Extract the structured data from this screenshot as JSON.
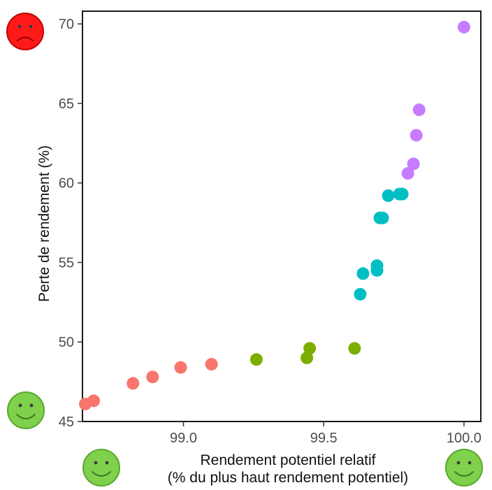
{
  "chart_data": {
    "type": "scatter",
    "xlabel_line1": "Rendement potentiel relatif",
    "xlabel_line2": "(% du plus haut rendement potentiel)",
    "ylabel": "Perte de rendement (%)",
    "xlim": [
      98.64,
      100.06
    ],
    "ylim": [
      45,
      70.8
    ],
    "x_ticks": [
      {
        "value": 99.0,
        "label": "99.0"
      },
      {
        "value": 99.5,
        "label": "99.5"
      },
      {
        "value": 100.0,
        "label": "100.0"
      }
    ],
    "y_ticks": [
      {
        "value": 45,
        "label": "45"
      },
      {
        "value": 50,
        "label": "50"
      },
      {
        "value": 55,
        "label": "55"
      },
      {
        "value": 60,
        "label": "60"
      },
      {
        "value": 65,
        "label": "65"
      },
      {
        "value": 70,
        "label": "70"
      }
    ],
    "grid": false,
    "legend": "none",
    "series": [
      {
        "color": "#f8766d",
        "points": [
          {
            "x": 98.65,
            "y": 46.1
          },
          {
            "x": 98.68,
            "y": 46.3
          },
          {
            "x": 98.82,
            "y": 47.4
          },
          {
            "x": 98.89,
            "y": 47.8
          },
          {
            "x": 98.99,
            "y": 48.4
          },
          {
            "x": 99.1,
            "y": 48.6
          }
        ]
      },
      {
        "color": "#7cae00",
        "points": [
          {
            "x": 99.26,
            "y": 48.9
          },
          {
            "x": 99.44,
            "y": 49.0
          },
          {
            "x": 99.45,
            "y": 49.6
          },
          {
            "x": 99.61,
            "y": 49.6
          }
        ]
      },
      {
        "color": "#00bfc4",
        "points": [
          {
            "x": 99.63,
            "y": 53.0
          },
          {
            "x": 99.64,
            "y": 54.3
          },
          {
            "x": 99.69,
            "y": 54.5
          },
          {
            "x": 99.69,
            "y": 54.8
          },
          {
            "x": 99.7,
            "y": 57.8
          },
          {
            "x": 99.71,
            "y": 57.8
          },
          {
            "x": 99.73,
            "y": 59.2
          },
          {
            "x": 99.77,
            "y": 59.3
          },
          {
            "x": 99.78,
            "y": 59.3
          }
        ]
      },
      {
        "color": "#c77cff",
        "points": [
          {
            "x": 99.8,
            "y": 60.6
          },
          {
            "x": 99.82,
            "y": 61.2
          },
          {
            "x": 99.83,
            "y": 63.0
          },
          {
            "x": 99.84,
            "y": 64.6
          },
          {
            "x": 100.0,
            "y": 69.8
          }
        ]
      }
    ]
  },
  "faces": {
    "sad_face": {
      "name": "sad-face-icon",
      "color": "#ff1a1a",
      "stroke": "#c00000"
    },
    "happy_face_y": {
      "name": "happy-face-icon",
      "color": "#7fd04b",
      "stroke": "#5aa82e"
    },
    "happy_face_x_left": {
      "name": "happy-face-icon",
      "color": "#7fd04b",
      "stroke": "#5aa82e"
    },
    "happy_face_x_right": {
      "name": "happy-face-icon",
      "color": "#7fd04b",
      "stroke": "#5aa82e"
    }
  }
}
